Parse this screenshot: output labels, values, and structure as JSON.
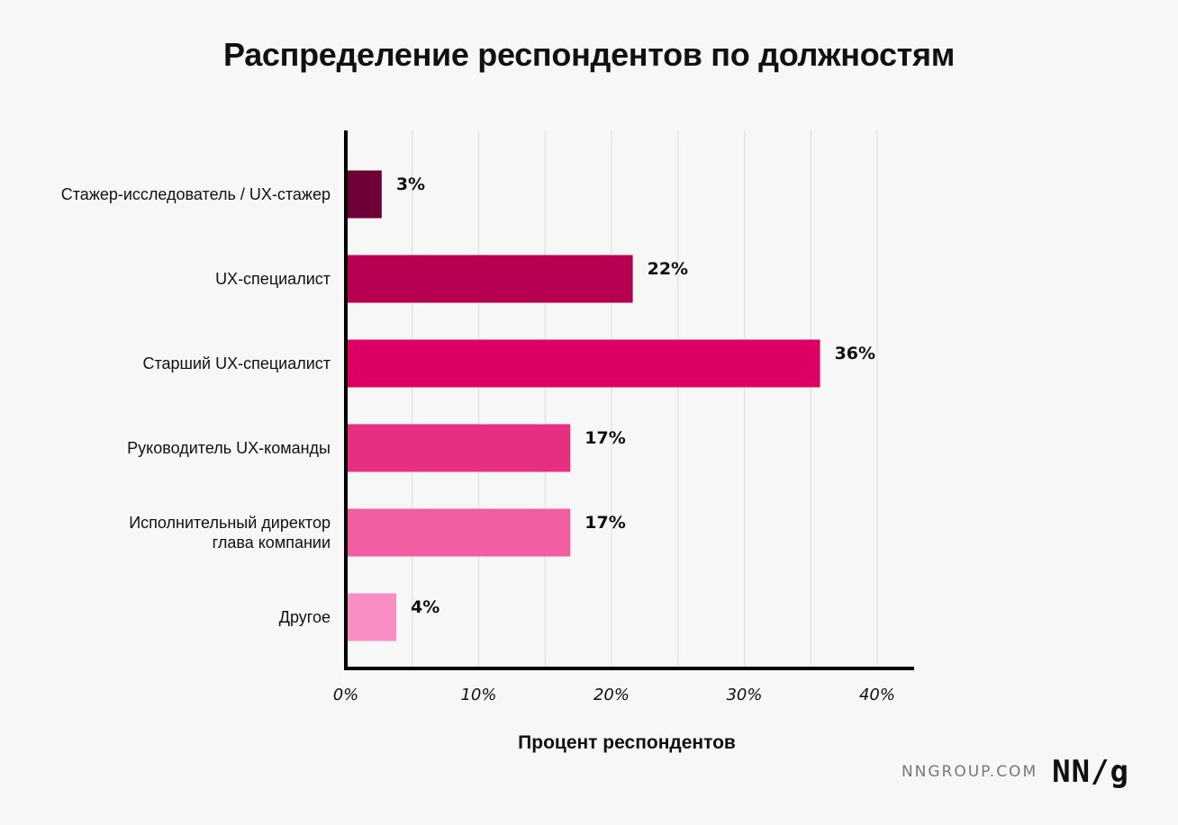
{
  "chart_data": {
    "type": "bar",
    "orientation": "horizontal",
    "title": "Распределение респондентов по должностям",
    "xlabel": "Процент респондентов",
    "ylabel": "",
    "xlim": [
      0,
      43
    ],
    "x_ticks": [
      0,
      10,
      20,
      30,
      40
    ],
    "x_tick_labels": [
      "0%",
      "10%",
      "20%",
      "30%",
      "40%"
    ],
    "grid": "vertical",
    "categories": [
      [
        "Стажер-исследователь / UX-стажер"
      ],
      [
        "UX-специалист"
      ],
      [
        "Старший UX-специалист"
      ],
      [
        "Руководитель UX-команды"
      ],
      [
        "Исполнительный директор",
        "глава компании"
      ],
      [
        "Другое"
      ]
    ],
    "values": [
      2.7,
      21.6,
      35.7,
      16.9,
      16.9,
      3.8
    ],
    "value_labels": [
      "3%",
      "22%",
      "36%",
      "17%",
      "17%",
      "4%"
    ],
    "colors": [
      "#6e0037",
      "#b80052",
      "#dc0064",
      "#e72f82",
      "#f05ea1",
      "#f98ec4"
    ]
  },
  "footer": {
    "site": "NNGROUP.COM",
    "logo": "NN/g"
  }
}
